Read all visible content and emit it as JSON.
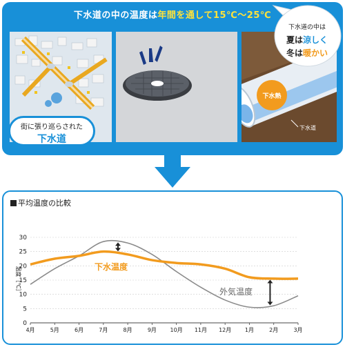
{
  "header": {
    "title_prefix": "下水道の中の温度は",
    "title_highlight": "年間を通して15℃〜25℃"
  },
  "photos": {
    "city_label_line1": "街に張り巡らされた",
    "city_label_line2": "下水道",
    "pipe_heat_label": "下水熱",
    "pipe_label": "下水道"
  },
  "chart_section": {
    "title": "平均温度の比較",
    "callout": {
      "line1": "下水道の中は",
      "line2_season": "夏は",
      "line2_highlight": "涼しく",
      "line3_season": "冬は",
      "line3_highlight": "暖かい"
    }
  },
  "colors": {
    "panel_blue": "#1890d8",
    "sewage_orange": "#f29b1e",
    "air_gray": "#8a8a8a",
    "highlight_yellow": "#ffe23a"
  },
  "chart_data": {
    "type": "line",
    "title": "平均温度の比較",
    "xlabel": "",
    "ylabel": "温度［℃］",
    "categories": [
      "4月",
      "5月",
      "6月",
      "7月",
      "8月",
      "9月",
      "10月",
      "11月",
      "12月",
      "1月",
      "2月",
      "3月"
    ],
    "ylim": [
      0,
      30
    ],
    "yticks": [
      0,
      5,
      10,
      15,
      20,
      25,
      30
    ],
    "grid": true,
    "series": [
      {
        "name": "下水温度",
        "values": [
          20.5,
          22.5,
          23.5,
          25,
          24,
          22,
          21,
          20.5,
          19,
          16,
          15.5,
          15.5
        ]
      },
      {
        "name": "外気温度",
        "values": [
          13.5,
          19,
          23.5,
          28.5,
          28,
          24,
          18,
          12.5,
          8,
          5.5,
          6,
          9.5
        ]
      }
    ]
  }
}
